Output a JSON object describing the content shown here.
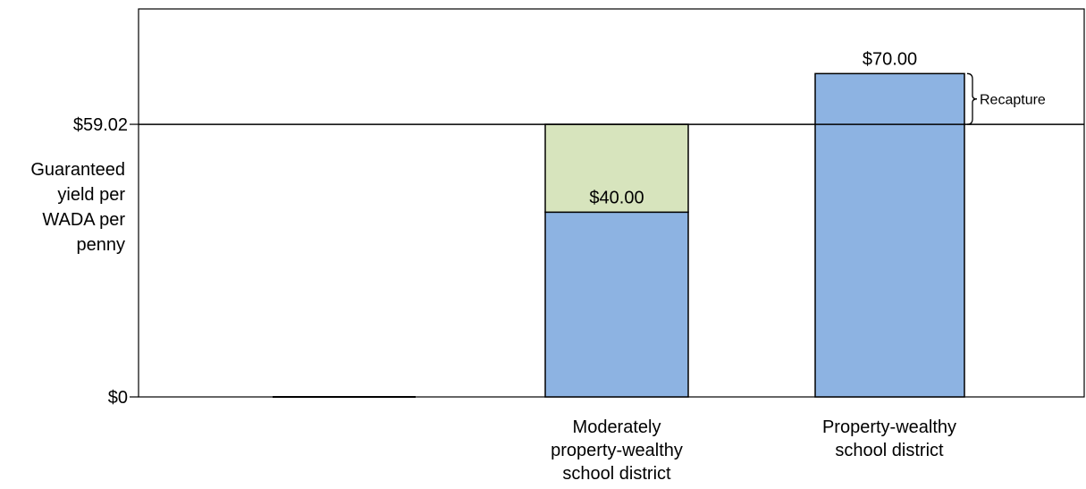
{
  "chart_data": {
    "type": "bar",
    "ylabel_lines": [
      "Guaranteed",
      "yield per",
      "WADA per",
      "penny"
    ],
    "y_ticks": [
      {
        "value": 0,
        "label": "$0"
      },
      {
        "value": 59.02,
        "label": "$59.02"
      }
    ],
    "ylim": [
      0,
      84
    ],
    "categories": [
      {
        "lines": []
      },
      {
        "lines": [
          "Moderately",
          "property-wealthy",
          "school district"
        ]
      },
      {
        "lines": [
          "Property-wealthy",
          "school district"
        ]
      }
    ],
    "series": [
      {
        "values": [
          0,
          40.0,
          70.0
        ],
        "color": "#8db3e2"
      },
      {
        "values": [
          0,
          19.02,
          0
        ],
        "color": "#d7e4bd"
      }
    ],
    "data_labels": [
      "",
      "$40.00",
      "$70.00"
    ],
    "reference_line": {
      "value": 59.02
    },
    "annotation": {
      "text": "Recapture",
      "from": 59.02,
      "to": 70.0,
      "category_index": 2
    }
  }
}
